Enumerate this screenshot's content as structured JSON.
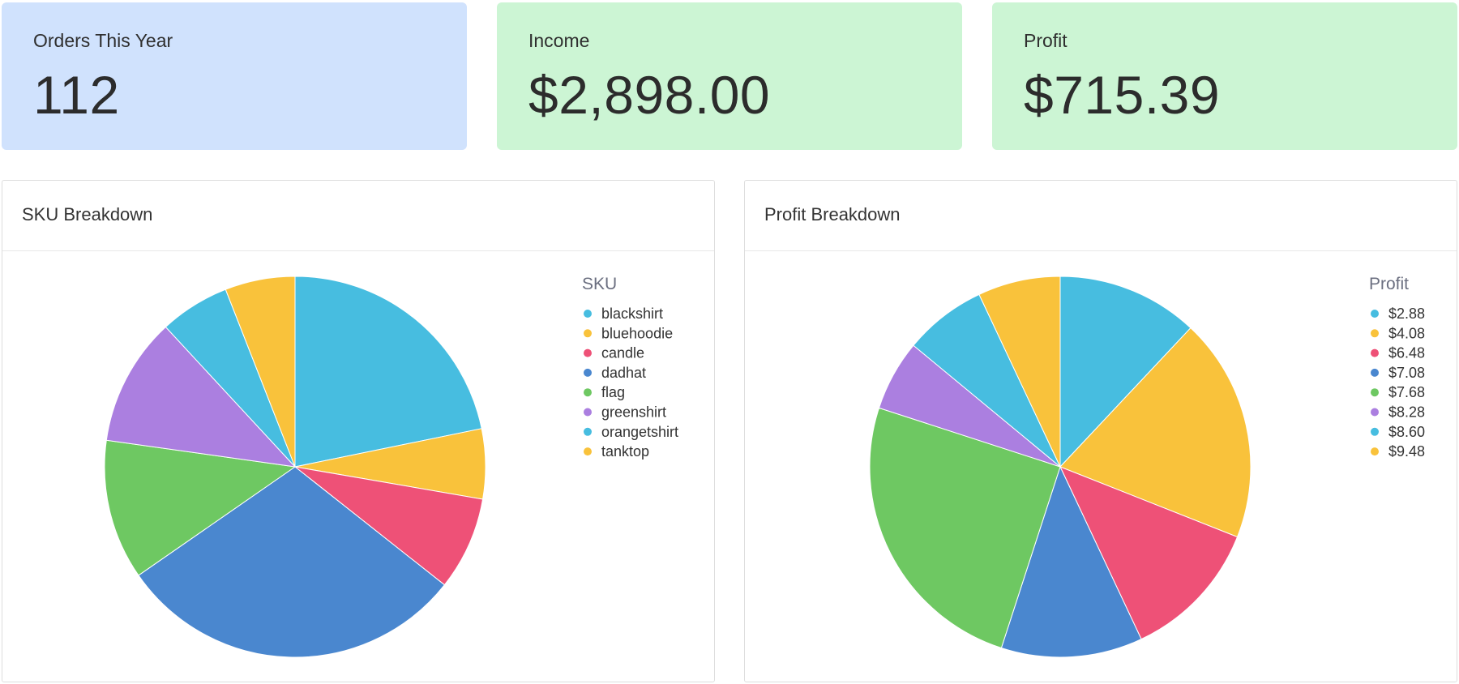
{
  "stats": {
    "orders": {
      "label": "Orders This Year",
      "value": "112",
      "color": "#d0e2fd"
    },
    "income": {
      "label": "Income",
      "value": "$2,898.00",
      "color": "#ccf5d4"
    },
    "profit": {
      "label": "Profit",
      "value": "$715.39",
      "color": "#ccf5d4"
    }
  },
  "panels": {
    "sku": {
      "title": "SKU Breakdown"
    },
    "profit": {
      "title": "Profit Breakdown"
    }
  },
  "chart_data": [
    {
      "type": "pie",
      "legend_title": "SKU",
      "legend_placement": "top-right",
      "categories": [
        "blackshirt",
        "bluehoodie",
        "candle",
        "dadhat",
        "flag",
        "greenshirt",
        "orangetshirt",
        "tanktop"
      ],
      "values": [
        22,
        6,
        8,
        30,
        12,
        11,
        6,
        6
      ],
      "colors": [
        "#47bde0",
        "#f9c23b",
        "#ee5177",
        "#4a87cf",
        "#6ec862",
        "#ab7fe0",
        "#47bde0",
        "#f9c23b"
      ]
    },
    {
      "type": "pie",
      "legend_title": "Profit",
      "legend_placement": "top-right",
      "categories": [
        "$2.88",
        "$4.08",
        "$6.48",
        "$7.08",
        "$7.68",
        "$8.28",
        "$8.60",
        "$9.48"
      ],
      "values": [
        12,
        19,
        12,
        12,
        25,
        6,
        7,
        7
      ],
      "colors": [
        "#47bde0",
        "#f9c23b",
        "#ee5177",
        "#4a87cf",
        "#6ec862",
        "#ab7fe0",
        "#47bde0",
        "#f9c23b"
      ]
    }
  ]
}
